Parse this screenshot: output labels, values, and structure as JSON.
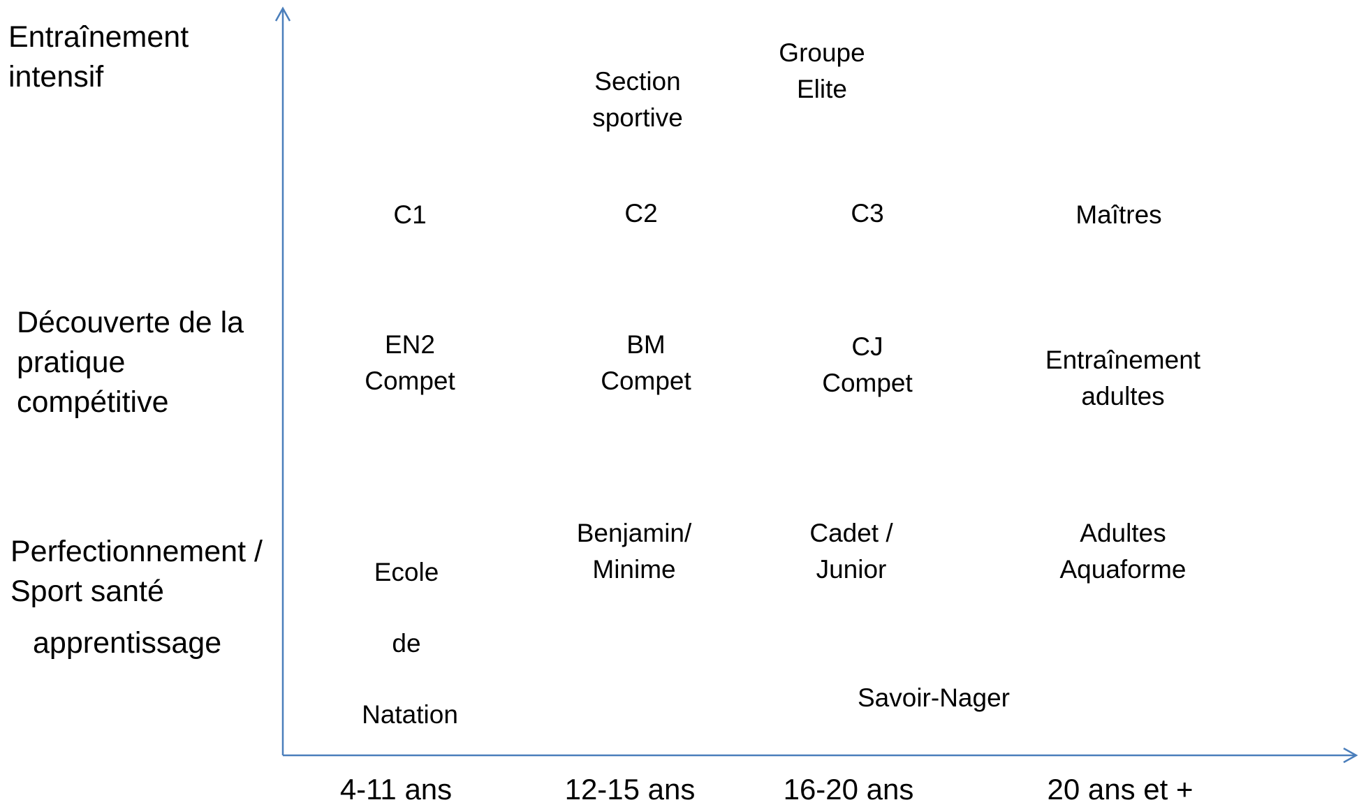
{
  "y_axis_labels": {
    "top": "Entraînement\nintensif",
    "mid": "Découverte de la\npratique\ncompétitive",
    "low": "Perfectionnement /\nSport santé",
    "base": "apprentissage"
  },
  "x_axis_labels": {
    "a": "4-11 ans",
    "b": "12-15 ans",
    "c": "16-20 ans",
    "d": "20 ans et +"
  },
  "groups": {
    "section_sportive": "Section\nsportive",
    "groupe_elite": "Groupe\nElite",
    "c1": "C1",
    "c2": "C2",
    "c3": "C3",
    "maitres": "Maîtres",
    "en2": "EN2\nCompet",
    "bm": "BM\nCompet",
    "cj": "CJ\nCompet",
    "adultes_entr": "Entraînement\nadultes",
    "ecole_1": "Ecole",
    "ecole_2": "de",
    "ecole_3": "Natation",
    "benjamin": "Benjamin/\nMinime",
    "cadet": "Cadet /\nJunior",
    "aquaforme": "Adultes\nAquaforme",
    "savoir": "Savoir-Nager"
  },
  "colors": {
    "axis": "#4a7ebb"
  }
}
